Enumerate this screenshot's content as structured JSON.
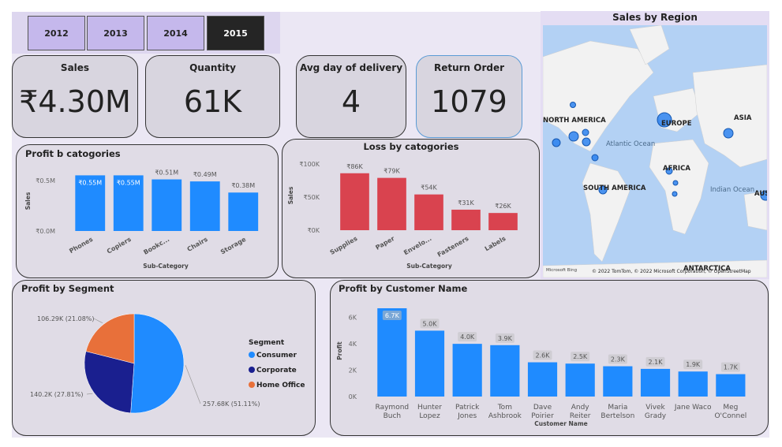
{
  "year_buttons": [
    "2012",
    "2013",
    "2014",
    "2015"
  ],
  "kpis": [
    {
      "label": "Sales",
      "value": "₹4.30M"
    },
    {
      "label": "Quantity",
      "value": "61K"
    },
    {
      "label": "Avg day of delivery",
      "value": "4"
    },
    {
      "label": "Return Order",
      "value": "1079"
    }
  ],
  "map": {
    "title": "Sales by Region",
    "labels": [
      "NORTH AMERICA",
      "EUROPE",
      "ASIA",
      "Atlantic Ocean",
      "AFRICA",
      "SOUTH AMERICA",
      "Indian Ocean",
      "AUS",
      "ANTARCTICA"
    ],
    "logo": "Microsoft Bing",
    "attribution": "© 2022 TomTom, © 2022 Microsoft Corporation, © OpenStreetMap"
  },
  "chart_data": [
    {
      "type": "bar",
      "title": "Profit b catogories",
      "y_label": "Sales",
      "x_label": "Sub-Category",
      "color": "#1f8bff",
      "categories": [
        "Phones",
        "Copiers",
        "Bookc...",
        "Chairs",
        "Storage"
      ],
      "values": [
        550000,
        550000,
        510000,
        490000,
        380000
      ],
      "value_labels": [
        "₹0.55M",
        "₹0.55M",
        "₹0.51M",
        "₹0.49M",
        "₹0.38M"
      ],
      "ylim": [
        0,
        600000
      ],
      "yticks": [
        {
          "value": 0,
          "label": "₹0.0M"
        },
        {
          "value": 500000,
          "label": "₹0.5M"
        }
      ]
    },
    {
      "type": "bar",
      "title": "Loss by catogories",
      "y_label": "Sales",
      "x_label": "Sub-Category",
      "color": "#d9434f",
      "categories": [
        "Supplies",
        "Paper",
        "Envelo...",
        "Fasteners",
        "Labels"
      ],
      "values": [
        86000,
        79000,
        54000,
        31000,
        26000
      ],
      "value_labels": [
        "₹86K",
        "₹79K",
        "₹54K",
        "₹31K",
        "₹26K"
      ],
      "ylim": [
        0,
        100000
      ],
      "yticks": [
        {
          "value": 0,
          "label": "₹0K"
        },
        {
          "value": 50000,
          "label": "₹50K"
        },
        {
          "value": 100000,
          "label": "₹100K"
        }
      ]
    },
    {
      "type": "pie",
      "title": "Profit by Segment",
      "legend_title": "Segment",
      "categories": [
        "Consumer",
        "Corporate",
        "Home Office"
      ],
      "values": [
        257680,
        140200,
        106290
      ],
      "value_labels": [
        "257.68K (51.11%)",
        "140.2K (27.81%)",
        "106.29K (21.08%)"
      ],
      "colors": [
        "#1f8bff",
        "#1a1f8f",
        "#e8703a"
      ]
    },
    {
      "type": "bar",
      "title": "Profit by Customer Name",
      "y_label": "Profit",
      "x_label": "Customer Name",
      "color": "#1f8bff",
      "categories": [
        "Raymond Buch",
        "Hunter Lopez",
        "Patrick Jones",
        "Tom Ashbrook",
        "Dave Poirier",
        "Andy Reiter",
        "Maria Bertelson",
        "Vivek Grady",
        "Jane Waco",
        "Meg O'Connel"
      ],
      "values": [
        6700,
        5000,
        4000,
        3900,
        2600,
        2500,
        2300,
        2100,
        1900,
        1700
      ],
      "value_labels": [
        "6.7K",
        "5.0K",
        "4.0K",
        "3.9K",
        "2.6K",
        "2.5K",
        "2.3K",
        "2.1K",
        "1.9K",
        "1.7K"
      ],
      "ylim": [
        0,
        7000
      ],
      "yticks": [
        {
          "value": 0,
          "label": "0K"
        },
        {
          "value": 2000,
          "label": "2K"
        },
        {
          "value": 4000,
          "label": "4K"
        },
        {
          "value": 6000,
          "label": "6K"
        }
      ]
    }
  ]
}
